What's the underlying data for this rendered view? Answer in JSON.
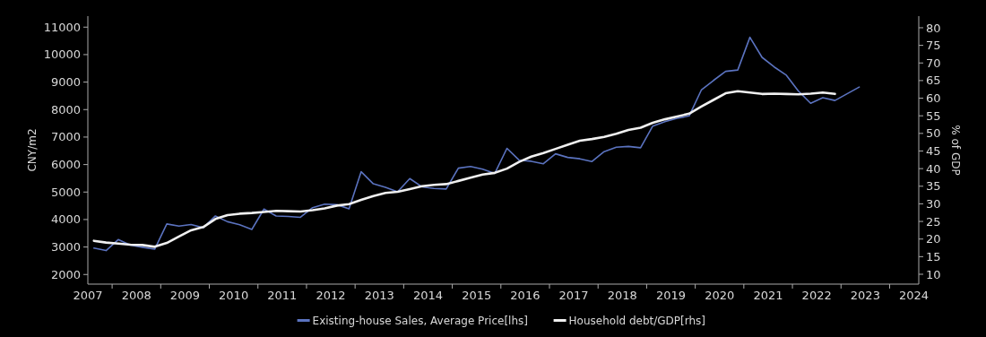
{
  "chart_data": {
    "type": "line",
    "xlabel": null,
    "ylabel": "CNY/m2",
    "y2label": "% of GDP",
    "xlim": [
      2007.5,
      2024.6
    ],
    "xticks": [
      {
        "value": 2008,
        "label": null
      },
      {
        "value": 2009,
        "label": null
      },
      {
        "value": 2010,
        "label": null
      },
      {
        "value": 2011,
        "label": null
      },
      {
        "value": 2012,
        "label": null
      },
      {
        "value": 2013,
        "label": null
      },
      {
        "value": 2014,
        "label": null
      },
      {
        "value": 2015,
        "label": null
      },
      {
        "value": 2016,
        "label": null
      },
      {
        "value": 2017,
        "label": null
      },
      {
        "value": 2018,
        "label": null
      },
      {
        "value": 2019,
        "label": null
      },
      {
        "value": 2020,
        "label": null
      },
      {
        "value": 2021,
        "label": null
      },
      {
        "value": 2022,
        "label": null
      },
      {
        "value": 2023,
        "label": null
      },
      {
        "value": 2024,
        "label": null
      },
      {
        "value": 2007.5,
        "label": "2007"
      },
      {
        "value": 2008.5,
        "label": "2008"
      },
      {
        "value": 2009.5,
        "label": "2009"
      },
      {
        "value": 2010.5,
        "label": "2010"
      },
      {
        "value": 2011.5,
        "label": "2011"
      },
      {
        "value": 2012.5,
        "label": "2012"
      },
      {
        "value": 2013.5,
        "label": "2013"
      },
      {
        "value": 2014.5,
        "label": "2014"
      },
      {
        "value": 2015.5,
        "label": "2015"
      },
      {
        "value": 2016.5,
        "label": "2016"
      },
      {
        "value": 2017.5,
        "label": "2017"
      },
      {
        "value": 2018.5,
        "label": "2018"
      },
      {
        "value": 2019.5,
        "label": "2019"
      },
      {
        "value": 2020.5,
        "label": "2020"
      },
      {
        "value": 2021.5,
        "label": "2021"
      },
      {
        "value": 2022.5,
        "label": "2022"
      },
      {
        "value": 2023.5,
        "label": "2023"
      },
      {
        "value": 2024.5,
        "label": "2024"
      }
    ],
    "ylim": [
      1650,
      11400
    ],
    "yticks": [
      2000,
      3000,
      4000,
      5000,
      6000,
      7000,
      8000,
      9000,
      10000,
      11000
    ],
    "y2lim": [
      7.2,
      83.3
    ],
    "y2ticks": [
      10,
      15,
      20,
      25,
      30,
      35,
      40,
      45,
      50,
      55,
      60,
      65,
      70,
      75,
      80
    ],
    "grid": false,
    "legend": "bottom",
    "marker": "none",
    "series": [
      {
        "name": "Existing-house Sales, Average Price[lhs]",
        "color": "#5b73c0",
        "x": [
          2007.625,
          2007.875,
          2008.125,
          2008.375,
          2008.625,
          2008.875,
          2009.125,
          2009.375,
          2009.625,
          2009.875,
          2010.125,
          2010.375,
          2010.625,
          2010.875,
          2011.125,
          2011.375,
          2011.625,
          2011.875,
          2012.125,
          2012.375,
          2012.625,
          2012.875,
          2013.125,
          2013.375,
          2013.625,
          2013.875,
          2014.125,
          2014.375,
          2014.625,
          2014.875,
          2015.125,
          2015.375,
          2015.625,
          2015.875,
          2016.125,
          2016.375,
          2016.625,
          2016.875,
          2017.125,
          2017.375,
          2017.625,
          2017.875,
          2018.125,
          2018.375,
          2018.625,
          2018.875,
          2019.125,
          2019.375,
          2019.625,
          2019.875,
          2020.125,
          2020.375,
          2020.625,
          2020.875,
          2021.125,
          2021.375,
          2021.625,
          2021.875,
          2022.125,
          2022.375,
          2022.625,
          2022.875,
          2023.375
        ],
        "values": [
          2960,
          2870,
          3270,
          3070,
          2990,
          2920,
          3840,
          3760,
          3820,
          3700,
          4130,
          3920,
          3810,
          3640,
          4380,
          4130,
          4110,
          4080,
          4430,
          4560,
          4540,
          4390,
          5740,
          5300,
          5170,
          5010,
          5490,
          5190,
          5130,
          5110,
          5870,
          5930,
          5830,
          5680,
          6590,
          6160,
          6120,
          6030,
          6390,
          6260,
          6210,
          6110,
          6470,
          6630,
          6660,
          6610,
          7400,
          7560,
          7680,
          7770,
          8710,
          9060,
          9390,
          9440,
          10630,
          9900,
          9550,
          9250,
          8670,
          8230,
          8430,
          8330,
          8820
        ]
      },
      {
        "name": "Household debt/GDP[rhs]",
        "color": "#f0f0f0",
        "axis": "y2",
        "x": [
          2007.625,
          2007.875,
          2008.125,
          2008.375,
          2008.625,
          2008.875,
          2009.125,
          2009.375,
          2009.625,
          2009.875,
          2010.125,
          2010.375,
          2010.625,
          2010.875,
          2011.125,
          2011.375,
          2011.625,
          2011.875,
          2012.125,
          2012.375,
          2012.625,
          2012.875,
          2013.125,
          2013.375,
          2013.625,
          2013.875,
          2014.125,
          2014.375,
          2014.625,
          2014.875,
          2015.125,
          2015.375,
          2015.625,
          2015.875,
          2016.125,
          2016.375,
          2016.625,
          2016.875,
          2017.125,
          2017.375,
          2017.625,
          2017.875,
          2018.125,
          2018.375,
          2018.625,
          2018.875,
          2019.125,
          2019.375,
          2019.625,
          2019.875,
          2020.125,
          2020.375,
          2020.625,
          2020.875,
          2021.125,
          2021.375,
          2021.625,
          2021.875,
          2022.125,
          2022.375,
          2022.625,
          2022.875
        ],
        "values": [
          19.5,
          19.0,
          18.7,
          18.4,
          18.3,
          17.8,
          18.9,
          20.7,
          22.5,
          23.4,
          25.7,
          26.8,
          27.2,
          27.4,
          27.7,
          28.0,
          27.9,
          27.8,
          28.2,
          28.7,
          29.5,
          29.9,
          31.1,
          32.2,
          33.1,
          33.4,
          34.2,
          35.0,
          35.4,
          35.6,
          36.5,
          37.4,
          38.3,
          38.8,
          40.0,
          41.9,
          43.4,
          44.4,
          45.6,
          46.8,
          47.9,
          48.4,
          49.0,
          49.9,
          51.0,
          51.6,
          53.0,
          54.0,
          54.8,
          55.6,
          57.6,
          59.5,
          61.4,
          62.0,
          61.6,
          61.2,
          61.3,
          61.2,
          61.1,
          61.3,
          61.6,
          61.2
        ]
      }
    ]
  }
}
